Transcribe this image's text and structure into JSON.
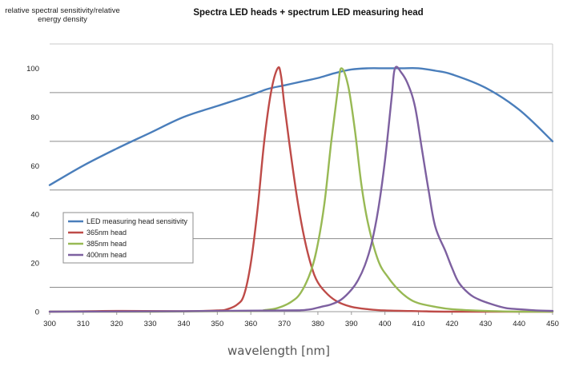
{
  "chart_data": {
    "type": "line",
    "title": "Spectra LED heads + spectrum LED measuring head",
    "ylabel_lines": [
      "relative spectral sensitivity/relative",
      "energy density"
    ],
    "xlabel": "wavelength [nm]",
    "xlim": [
      300,
      450
    ],
    "ylim": [
      0,
      110
    ],
    "x_ticks": [
      300,
      310,
      320,
      330,
      340,
      350,
      360,
      370,
      380,
      390,
      400,
      410,
      420,
      430,
      440,
      450
    ],
    "y_ticks": [
      0,
      20,
      40,
      60,
      80,
      100
    ],
    "gridlines_y": [
      10,
      30,
      50,
      70,
      90
    ],
    "legend_position": "bottom-left",
    "series": [
      {
        "name": "LED measuring head sensitivity",
        "color": "#4a7ebb",
        "x": [
          300,
          310,
          320,
          330,
          340,
          350,
          360,
          365,
          370,
          375,
          380,
          385,
          390,
          395,
          400,
          405,
          410,
          415,
          420,
          430,
          440,
          450
        ],
        "y": [
          52,
          60,
          67,
          73.5,
          80,
          84.5,
          89,
          91.5,
          93,
          94.5,
          96,
          98,
          99.5,
          100,
          100,
          100,
          100,
          99,
          97.5,
          92,
          83,
          70
        ]
      },
      {
        "name": "365nm head",
        "color": "#be4b48",
        "x": [
          300,
          320,
          340,
          350,
          353,
          356,
          358,
          360,
          362,
          364,
          366,
          368,
          369,
          370,
          372,
          374,
          376,
          378,
          380,
          383,
          386,
          390,
          395,
          400,
          410,
          420,
          450
        ],
        "y": [
          0,
          0.3,
          0.2,
          0.5,
          1,
          3,
          7,
          20,
          42,
          70,
          90,
          100,
          97,
          85,
          64,
          45,
          30,
          19,
          12,
          7,
          4,
          2,
          1,
          0.5,
          0.2,
          0,
          0
        ]
      },
      {
        "name": "385nm head",
        "color": "#98b954",
        "x": [
          300,
          330,
          360,
          364,
          368,
          372,
          375,
          378,
          380,
          382,
          384,
          386,
          387,
          389,
          391,
          393,
          395,
          398,
          401,
          404,
          407,
          410,
          415,
          420,
          430,
          440,
          450
        ],
        "y": [
          0,
          0,
          0.3,
          0.6,
          1.5,
          4,
          8,
          17,
          28,
          45,
          70,
          92,
          100,
          93,
          75,
          52,
          36,
          21,
          14,
          9,
          5.5,
          3.5,
          2,
          1,
          0.3,
          0,
          0
        ]
      },
      {
        "name": "400nm head",
        "color": "#7d60a0",
        "x": [
          300,
          340,
          370,
          375,
          378,
          381,
          384,
          387,
          390,
          392,
          394,
          396,
          398,
          400,
          402,
          403,
          405,
          407,
          409,
          411,
          413,
          415,
          418,
          420,
          422,
          425,
          428,
          432,
          436,
          440,
          445,
          450
        ],
        "y": [
          0,
          0.2,
          0.5,
          0.6,
          1,
          2,
          3,
          5,
          9,
          13,
          19,
          28,
          42,
          62,
          88,
          100,
          98,
          93,
          84,
          67,
          50,
          35,
          25,
          18,
          12,
          7.5,
          5,
          3,
          1.5,
          1,
          0.5,
          0.3
        ]
      }
    ]
  }
}
